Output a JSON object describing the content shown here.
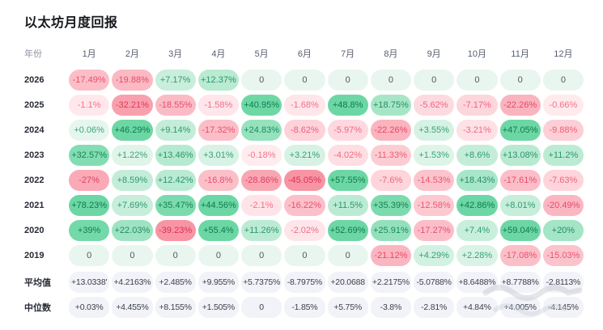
{
  "page": {
    "title": "以太坊月度回报"
  },
  "table": {
    "year_header": "年份",
    "month_headers": [
      "1月",
      "2月",
      "3月",
      "4月",
      "5月",
      "6月",
      "7月",
      "8月",
      "9月",
      "10月",
      "11月",
      "12月"
    ],
    "rows": [
      {
        "label": "2026",
        "values": [
          "-17.49%",
          "-19.88%",
          "+7.17%",
          "+12.37%",
          "0",
          "0",
          "0",
          "0",
          "0",
          "0",
          "0",
          "0"
        ]
      },
      {
        "label": "2025",
        "values": [
          "-1.1%",
          "-32.21%",
          "-18.55%",
          "-1.58%",
          "+40.95%",
          "-1.68%",
          "+48.8%",
          "+18.75%",
          "-5.62%",
          "-7.17%",
          "-22.26%",
          "-0.66%"
        ]
      },
      {
        "label": "2024",
        "values": [
          "+0.06%",
          "+46.29%",
          "+9.14%",
          "-17.32%",
          "+24.83%",
          "-8.62%",
          "-5.97%",
          "-22.26%",
          "+3.55%",
          "-3.21%",
          "+47.05%",
          "-9.88%"
        ]
      },
      {
        "label": "2023",
        "values": [
          "+32.57%",
          "+1.22%",
          "+13.46%",
          "+3.01%",
          "-0.18%",
          "+3.21%",
          "-4.02%",
          "-11.33%",
          "+1.53%",
          "+8.6%",
          "+13.08%",
          "+11.2%"
        ]
      },
      {
        "label": "2022",
        "values": [
          "-27%",
          "+8.59%",
          "+12.42%",
          "-16.8%",
          "-28.86%",
          "-45.05%",
          "+57.55%",
          "-7.6%",
          "-14.53%",
          "+18.43%",
          "-17.61%",
          "-7.63%"
        ]
      },
      {
        "label": "2021",
        "values": [
          "+78.23%",
          "+7.69%",
          "+35.47%",
          "+44.56%",
          "-2.1%",
          "-16.22%",
          "+11.5%",
          "+35.39%",
          "-12.58%",
          "+42.86%",
          "+8.01%",
          "-20.49%"
        ]
      },
      {
        "label": "2020",
        "values": [
          "+39%",
          "+22.03%",
          "-39.23%",
          "+55.4%",
          "+11.26%",
          "-2.02%",
          "+52.69%",
          "+25.91%",
          "-17.27%",
          "+7.4%",
          "+59.04%",
          "+20%"
        ]
      },
      {
        "label": "2019",
        "values": [
          "0",
          "0",
          "0",
          "0",
          "0",
          "0",
          "0",
          "-21.12%",
          "+4.29%",
          "+2.28%",
          "-17.08%",
          "-15.03%"
        ]
      }
    ],
    "summary_rows": [
      {
        "label": "平均值",
        "values": [
          "+13.0338'",
          "+4.2163%",
          "+2.485%",
          "+9.955%",
          "+5.7375%",
          "-8.7975%",
          "+20.0688",
          "+2.2175%",
          "-5.0788%",
          "+8.6488%",
          "+8.7788%",
          "-2.8113%"
        ]
      },
      {
        "label": "中位数",
        "values": [
          "+0.03%",
          "+4.455%",
          "+8.155%",
          "+1.505%",
          "0",
          "-1.85%",
          "+5.75%",
          "-3.8%",
          "-2.81%",
          "+4.84%",
          "+4.005%",
          "-4.145%"
        ]
      }
    ]
  },
  "colors": {
    "positive_light_bg": "#e7f6ee",
    "positive_strong_bg": "#6cd7a4",
    "positive_text_light": "#3aa87c",
    "positive_text_strong": "#0d7a4f",
    "negative_light_bg": "#ffedf0",
    "negative_strong_bg": "#f795a4",
    "negative_text_light": "#f4748c",
    "negative_text_strong": "#e12d56",
    "zero_bg": "#e9f6ef",
    "zero_text": "#51565f",
    "summary_bg": "#f2f3f8",
    "summary_text": "#3b3f4a"
  },
  "chart_data": {
    "type": "heatmap",
    "title": "以太坊月度回报",
    "x": [
      "1月",
      "2月",
      "3月",
      "4月",
      "5月",
      "6月",
      "7月",
      "8月",
      "9月",
      "10月",
      "11月",
      "12月"
    ],
    "y": [
      "2026",
      "2025",
      "2024",
      "2023",
      "2022",
      "2021",
      "2020",
      "2019",
      "平均值",
      "中位数"
    ],
    "unit": "%",
    "values": [
      [
        -17.49,
        -19.88,
        7.17,
        12.37,
        0,
        0,
        0,
        0,
        0,
        0,
        0,
        0
      ],
      [
        -1.1,
        -32.21,
        -18.55,
        -1.58,
        40.95,
        -1.68,
        48.8,
        18.75,
        -5.62,
        -7.17,
        -22.26,
        -0.66
      ],
      [
        0.06,
        46.29,
        9.14,
        -17.32,
        24.83,
        -8.62,
        -5.97,
        -22.26,
        3.55,
        -3.21,
        47.05,
        -9.88
      ],
      [
        32.57,
        1.22,
        13.46,
        3.01,
        -0.18,
        3.21,
        -4.02,
        -11.33,
        1.53,
        8.6,
        13.08,
        11.2
      ],
      [
        -27,
        8.59,
        12.42,
        -16.8,
        -28.86,
        -45.05,
        57.55,
        -7.6,
        -14.53,
        18.43,
        -17.61,
        -7.63
      ],
      [
        78.23,
        7.69,
        35.47,
        44.56,
        -2.1,
        -16.22,
        11.5,
        35.39,
        -12.58,
        42.86,
        8.01,
        -20.49
      ],
      [
        39,
        22.03,
        -39.23,
        55.4,
        11.26,
        -2.02,
        52.69,
        25.91,
        -17.27,
        7.4,
        59.04,
        20
      ],
      [
        0,
        0,
        0,
        0,
        0,
        0,
        0,
        -21.12,
        4.29,
        2.28,
        -17.08,
        -15.03
      ],
      [
        13.0338,
        4.2163,
        2.485,
        9.955,
        5.7375,
        -8.7975,
        20.0688,
        2.2175,
        -5.0788,
        8.6488,
        8.7788,
        -2.8113
      ],
      [
        0.03,
        4.455,
        8.155,
        1.505,
        0,
        -1.85,
        5.75,
        -3.8,
        -2.81,
        4.84,
        4.005,
        -4.145
      ]
    ],
    "legend": "none",
    "color_scale": "red-negative / green-positive heat pills"
  }
}
